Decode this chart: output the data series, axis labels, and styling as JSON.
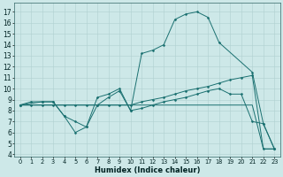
{
  "xlabel": "Humidex (Indice chaleur)",
  "background_color": "#cde8e8",
  "grid_color": "#b0d0d0",
  "line_color": "#1a7070",
  "xlim": [
    -0.5,
    23.5
  ],
  "ylim": [
    3.8,
    17.8
  ],
  "xticks": [
    0,
    1,
    2,
    3,
    4,
    5,
    6,
    7,
    8,
    9,
    10,
    11,
    12,
    13,
    14,
    15,
    16,
    17,
    18,
    19,
    20,
    21,
    22,
    23
  ],
  "yticks": [
    4,
    5,
    6,
    7,
    8,
    9,
    10,
    11,
    12,
    13,
    14,
    15,
    16,
    17
  ],
  "series": [
    {
      "x": [
        0,
        1,
        2,
        3,
        4,
        5,
        6,
        7,
        8,
        9,
        10,
        11,
        12,
        13,
        14,
        15,
        16,
        17,
        18,
        19,
        20,
        21,
        22,
        23
      ],
      "y": [
        8.5,
        8.5,
        8.5,
        8.5,
        8.5,
        8.5,
        8.5,
        8.5,
        8.5,
        8.5,
        8.5,
        8.5,
        8.5,
        8.5,
        8.5,
        8.5,
        8.5,
        8.5,
        8.5,
        8.5,
        8.5,
        8.5,
        4.5,
        4.5
      ],
      "marker": false
    },
    {
      "x": [
        0,
        2,
        3,
        4,
        5,
        6,
        7,
        8,
        9,
        10,
        11,
        12,
        13,
        14,
        15,
        16,
        17,
        18,
        21,
        22,
        23
      ],
      "y": [
        8.5,
        8.8,
        8.8,
        7.5,
        7.0,
        6.5,
        9.2,
        9.5,
        10.0,
        8.0,
        13.2,
        13.5,
        14.0,
        16.3,
        16.8,
        17.0,
        16.5,
        14.2,
        11.5,
        6.8,
        4.5
      ],
      "marker": true
    },
    {
      "x": [
        0,
        1,
        2,
        3,
        4,
        5,
        6,
        7,
        8,
        9,
        10,
        11,
        12,
        13,
        14,
        15,
        16,
        17,
        18,
        19,
        20,
        21,
        22,
        23
      ],
      "y": [
        8.5,
        8.5,
        8.5,
        8.5,
        8.5,
        8.5,
        8.5,
        8.5,
        8.5,
        8.5,
        8.5,
        8.8,
        9.0,
        9.2,
        9.5,
        9.8,
        10.0,
        10.2,
        10.5,
        10.8,
        11.0,
        11.2,
        4.5,
        4.5
      ],
      "marker": true
    },
    {
      "x": [
        0,
        1,
        2,
        3,
        4,
        5,
        6,
        7,
        8,
        9,
        10,
        11,
        12,
        13,
        14,
        15,
        16,
        17,
        18,
        19,
        20,
        21,
        22,
        23
      ],
      "y": [
        8.5,
        8.8,
        8.8,
        8.8,
        7.5,
        6.0,
        6.5,
        8.5,
        9.2,
        9.8,
        8.0,
        8.2,
        8.5,
        8.8,
        9.0,
        9.2,
        9.5,
        9.8,
        10.0,
        9.5,
        9.5,
        7.0,
        6.8,
        4.5
      ],
      "marker": true
    }
  ]
}
